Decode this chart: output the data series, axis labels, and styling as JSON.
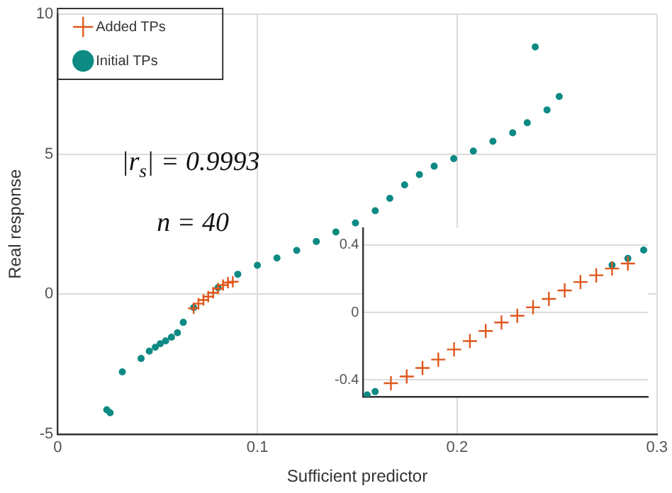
{
  "chart_data": [
    {
      "type": "scatter",
      "xlabel": "Sufficient predictor",
      "ylabel": "Real response",
      "xlim": [
        0,
        0.3
      ],
      "ylim": [
        -5,
        10
      ],
      "xticks": [
        0,
        0.1,
        0.2,
        0.3
      ],
      "yticks": [
        -5,
        0,
        5,
        10
      ],
      "grid": true,
      "legend": "top left",
      "annotations": [
        "|r$_{s}$| = 0.9993",
        "n = 40"
      ],
      "series": [
        {
          "name": "Initial TPs",
          "color": "#0e8a84",
          "marker": "circle",
          "x": [
            0.0246,
            0.0263,
            0.0324,
            0.0418,
            0.0459,
            0.0489,
            0.0514,
            0.0541,
            0.057,
            0.06,
            0.0629,
            0.0681,
            0.0803,
            0.0902,
            0.1,
            0.1098,
            0.1197,
            0.1295,
            0.1393,
            0.1491,
            0.159,
            0.1663,
            0.1737,
            0.1811,
            0.1885,
            0.1983,
            0.2081,
            0.2179,
            0.2278,
            0.2351,
            0.245,
            0.2511,
            0.2391
          ],
          "values": [
            -4.13,
            -4.24,
            -2.78,
            -2.3,
            -2.04,
            -1.9,
            -1.77,
            -1.67,
            -1.54,
            -1.38,
            -1.01,
            -0.48,
            0.23,
            0.71,
            1.03,
            1.29,
            1.56,
            1.88,
            2.22,
            2.54,
            2.98,
            3.42,
            3.9,
            4.27,
            4.57,
            4.84,
            5.11,
            5.46,
            5.76,
            6.12,
            6.58,
            7.06,
            8.83
          ]
        },
        {
          "name": "Added TPs",
          "color": "#e0571c",
          "marker": "cross",
          "x": [
            0.0681,
            0.0705,
            0.073,
            0.0754,
            0.0779,
            0.0803,
            0.0828,
            0.0853,
            0.0877
          ],
          "values": [
            -0.51,
            -0.34,
            -0.21,
            -0.09,
            0.05,
            0.2,
            0.32,
            0.41,
            0.44
          ]
        }
      ]
    },
    {
      "type": "scatter",
      "categories": [
        null,
        null,
        null,
        null,
        null,
        null,
        null,
        null,
        null,
        null,
        null,
        null,
        null,
        null,
        null,
        null,
        null,
        null,
        null,
        null,
        null,
        null,
        null,
        null,
        null,
        null,
        null,
        null,
        null,
        null,
        null,
        null,
        null,
        null,
        null,
        null
      ],
      "ylim": [
        -0.5,
        0.5
      ],
      "yticks": [
        -0.4,
        0,
        0.4
      ],
      "grid": true,
      "series": [
        {
          "color": "#0e8a84",
          "marker": "circle",
          "values": [
            -0.49,
            -0.47,
            null,
            null,
            null,
            null,
            null,
            null,
            null,
            null,
            null,
            null,
            null,
            null,
            null,
            null,
            null,
            null,
            null,
            null,
            null,
            null,
            null,
            null,
            null,
            null,
            null,
            null,
            null,
            null,
            null,
            0.28,
            null,
            0.32,
            null,
            0.37
          ]
        },
        {
          "color": "#e0571c",
          "marker": "cross",
          "values": [
            null,
            null,
            null,
            -0.42,
            null,
            -0.38,
            null,
            -0.33,
            null,
            -0.28,
            null,
            -0.22,
            null,
            -0.17,
            null,
            -0.11,
            null,
            -0.06,
            null,
            -0.02,
            null,
            0.03,
            null,
            0.08,
            null,
            0.13,
            null,
            0.18,
            null,
            0.22,
            null,
            0.26,
            null,
            0.29,
            null,
            null
          ]
        }
      ]
    }
  ]
}
